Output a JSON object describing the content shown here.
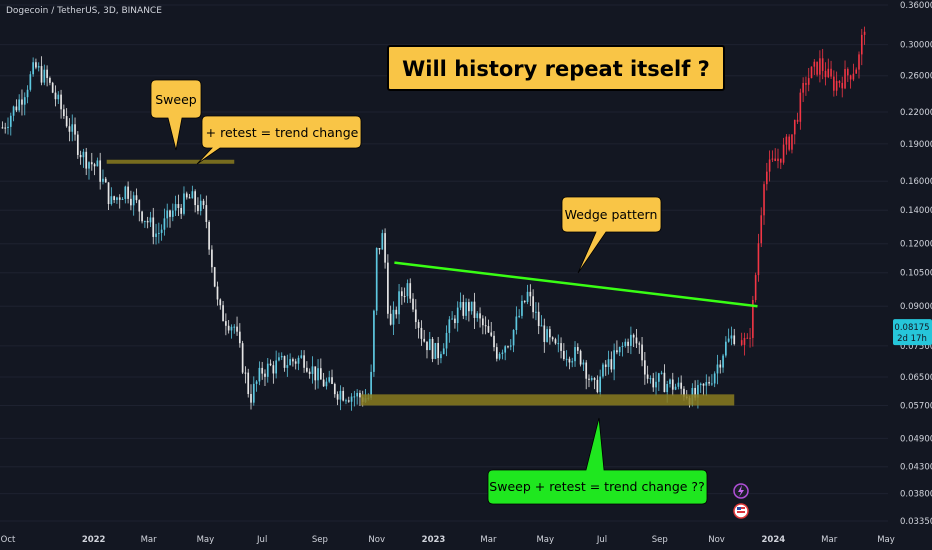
{
  "header": {
    "symbol": "Dogecoin / TetherUS, 3D, BINANCE"
  },
  "price_axis": {
    "ticks": [
      "0.36000",
      "0.30000",
      "0.26000",
      "0.22000",
      "0.19000",
      "0.16000",
      "0.14000",
      "0.12000",
      "0.10500",
      "0.09000",
      "0.07500",
      "0.06500",
      "0.05700",
      "0.04900",
      "0.04300",
      "0.03800",
      "0.03350"
    ],
    "current_price": "0.08175",
    "countdown": "2d 17h",
    "current_price_color": "#26c6da"
  },
  "time_axis": {
    "labels": [
      "Oct",
      "2022",
      "Mar",
      "May",
      "Jul",
      "Sep",
      "Nov",
      "2023",
      "Mar",
      "May",
      "Jul",
      "Sep",
      "Nov",
      "2024",
      "Mar",
      "May"
    ]
  },
  "annotations": {
    "headline": "Will history repeat itself ?",
    "sweep": "Sweep",
    "retest": "+ retest = trend change",
    "wedge": "Wedge pattern",
    "question": "Sweep + retest = trend change ??"
  },
  "colors": {
    "background": "#131722",
    "candle_up": "#5ec8e0",
    "candle_down": "#e6e6e6",
    "projection": "#f23645",
    "wedge_line": "#39ff14",
    "support_zone": "#8a7b1e",
    "callout_yellow": "#f9c546",
    "callout_green": "#1fe71f"
  },
  "chart_data": {
    "type": "candlestick",
    "title": "Dogecoin / TetherUS, 3D, BINANCE",
    "y_scale": "log",
    "ylim": [
      0.0335,
      0.36
    ],
    "xlim": [
      "2021-10",
      "2024-05"
    ],
    "path": [
      [
        "2021-09-25",
        0.205
      ],
      [
        "2021-10-15",
        0.235
      ],
      [
        "2021-10-30",
        0.27
      ],
      [
        "2021-11-12",
        0.255
      ],
      [
        "2021-12-01",
        0.215
      ],
      [
        "2021-12-20",
        0.18
      ],
      [
        "2022-01-05",
        0.17
      ],
      [
        "2022-01-20",
        0.145
      ],
      [
        "2022-02-05",
        0.155
      ],
      [
        "2022-02-20",
        0.14
      ],
      [
        "2022-03-10",
        0.125
      ],
      [
        "2022-03-28",
        0.14
      ],
      [
        "2022-04-15",
        0.148
      ],
      [
        "2022-05-01",
        0.138
      ],
      [
        "2022-05-15",
        0.088
      ],
      [
        "2022-06-01",
        0.082
      ],
      [
        "2022-06-18",
        0.059
      ],
      [
        "2022-07-01",
        0.067
      ],
      [
        "2022-07-20",
        0.069
      ],
      [
        "2022-08-15",
        0.071
      ],
      [
        "2022-09-01",
        0.064
      ],
      [
        "2022-09-20",
        0.061
      ],
      [
        "2022-10-10",
        0.0595
      ],
      [
        "2022-10-25",
        0.059
      ],
      [
        "2022-11-01",
        0.115
      ],
      [
        "2022-11-08",
        0.125
      ],
      [
        "2022-11-15",
        0.08
      ],
      [
        "2022-11-25",
        0.093
      ],
      [
        "2022-12-05",
        0.1
      ],
      [
        "2022-12-20",
        0.078
      ],
      [
        "2023-01-05",
        0.072
      ],
      [
        "2023-01-25",
        0.087
      ],
      [
        "2023-02-08",
        0.09
      ],
      [
        "2023-02-25",
        0.081
      ],
      [
        "2023-03-10",
        0.073
      ],
      [
        "2023-03-25",
        0.078
      ],
      [
        "2023-04-12",
        0.095
      ],
      [
        "2023-04-25",
        0.082
      ],
      [
        "2023-05-10",
        0.074
      ],
      [
        "2023-05-25",
        0.073
      ],
      [
        "2023-06-10",
        0.071
      ],
      [
        "2023-06-22",
        0.061
      ],
      [
        "2023-07-05",
        0.068
      ],
      [
        "2023-07-18",
        0.072
      ],
      [
        "2023-07-30",
        0.078
      ],
      [
        "2023-08-10",
        0.075
      ],
      [
        "2023-08-20",
        0.064
      ],
      [
        "2023-09-05",
        0.0635
      ],
      [
        "2023-09-20",
        0.062
      ],
      [
        "2023-10-08",
        0.059
      ],
      [
        "2023-10-20",
        0.062
      ],
      [
        "2023-11-01",
        0.068
      ],
      [
        "2023-11-10",
        0.075
      ],
      [
        "2023-11-20",
        0.079
      ]
    ],
    "projection_path": [
      [
        "2023-11-28",
        0.077
      ],
      [
        "2023-12-05",
        0.075
      ],
      [
        "2023-12-10",
        0.09
      ],
      [
        "2023-12-15",
        0.115
      ],
      [
        "2023-12-22",
        0.165
      ],
      [
        "2024-01-08",
        0.18
      ],
      [
        "2024-01-20",
        0.195
      ],
      [
        "2024-02-05",
        0.255
      ],
      [
        "2024-02-20",
        0.275
      ],
      [
        "2024-03-05",
        0.25
      ],
      [
        "2024-03-20",
        0.26
      ],
      [
        "2024-04-01",
        0.275
      ],
      [
        "2024-04-08",
        0.33
      ]
    ],
    "current_price": 0.08175,
    "wedge_line": [
      [
        "2022-11-20",
        0.11
      ],
      [
        "2023-12-15",
        0.09
      ]
    ],
    "sweep_level": {
      "from": "2022-01-15",
      "to": "2022-06-01",
      "price": 0.175
    },
    "support_zone": {
      "from": "2022-10-15",
      "to": "2023-11-20",
      "low": 0.057,
      "high": 0.06
    }
  }
}
